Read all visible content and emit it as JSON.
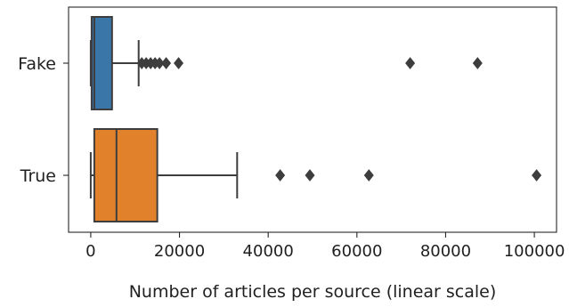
{
  "chart_data": {
    "type": "boxplot",
    "orientation": "horizontal",
    "title": "",
    "xlabel": "Number of articles per source (linear scale)",
    "ylabel": "",
    "xlim": [
      -5000,
      105000
    ],
    "x_ticks": [
      0,
      20000,
      40000,
      60000,
      80000,
      100000
    ],
    "x_tick_labels": [
      "0",
      "20000",
      "40000",
      "60000",
      "80000",
      "100000"
    ],
    "grid": false,
    "categories": [
      "Fake",
      "True"
    ],
    "series": [
      {
        "category": "Fake",
        "color": "#3a76a8",
        "whisker_low": 0,
        "q1": 200,
        "median": 800,
        "q3": 4800,
        "whisker_high": 10800,
        "outliers": [
          11500,
          12500,
          13500,
          14500,
          15500,
          17000,
          19800,
          72000,
          87200
        ]
      },
      {
        "category": "True",
        "color": "#e2812c",
        "whisker_low": 0,
        "q1": 800,
        "median": 5800,
        "q3": 15000,
        "whisker_high": 33000,
        "outliers": [
          42700,
          49400,
          62700,
          100500
        ]
      }
    ]
  }
}
